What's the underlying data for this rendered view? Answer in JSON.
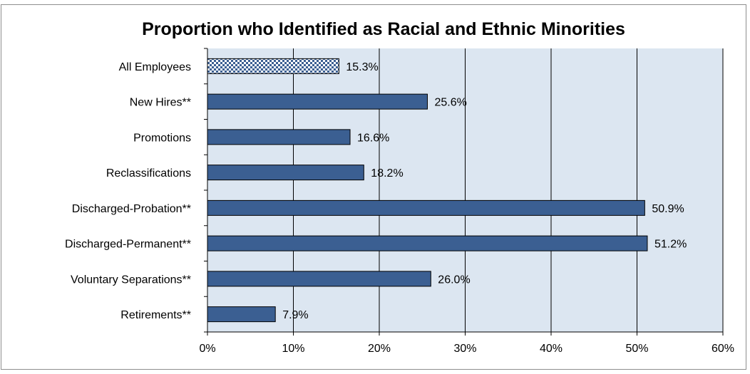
{
  "chart_data": {
    "type": "bar",
    "orientation": "horizontal",
    "title": "Proportion who Identified as Racial and Ethnic Minorities",
    "categories": [
      "All Employees",
      "New Hires**",
      "Promotions",
      "Reclassifications",
      "Discharged-Probation**",
      "Discharged-Permanent**",
      "Voluntary Separations**",
      "Retirements**"
    ],
    "values": [
      15.3,
      25.6,
      16.6,
      18.2,
      50.9,
      51.2,
      26.0,
      7.9
    ],
    "value_labels": [
      "15.3%",
      "25.6%",
      "16.6%",
      "18.2%",
      "50.9%",
      "51.2%",
      "26.0%",
      "7.9%"
    ],
    "xlim": [
      0,
      60
    ],
    "xticks": [
      0,
      10,
      20,
      30,
      40,
      50,
      60
    ],
    "xtick_labels": [
      "0%",
      "10%",
      "20%",
      "30%",
      "40%",
      "50%",
      "60%"
    ],
    "xlabel": "",
    "ylabel": "",
    "grid": "vertical",
    "plot_background": "#dce6f1",
    "bar_color": "#3b5f92",
    "highlight_pattern": "checkered",
    "highlight_category": "All Employees",
    "highlight_colors": [
      "#3b5f92",
      "#ffffff"
    ]
  }
}
